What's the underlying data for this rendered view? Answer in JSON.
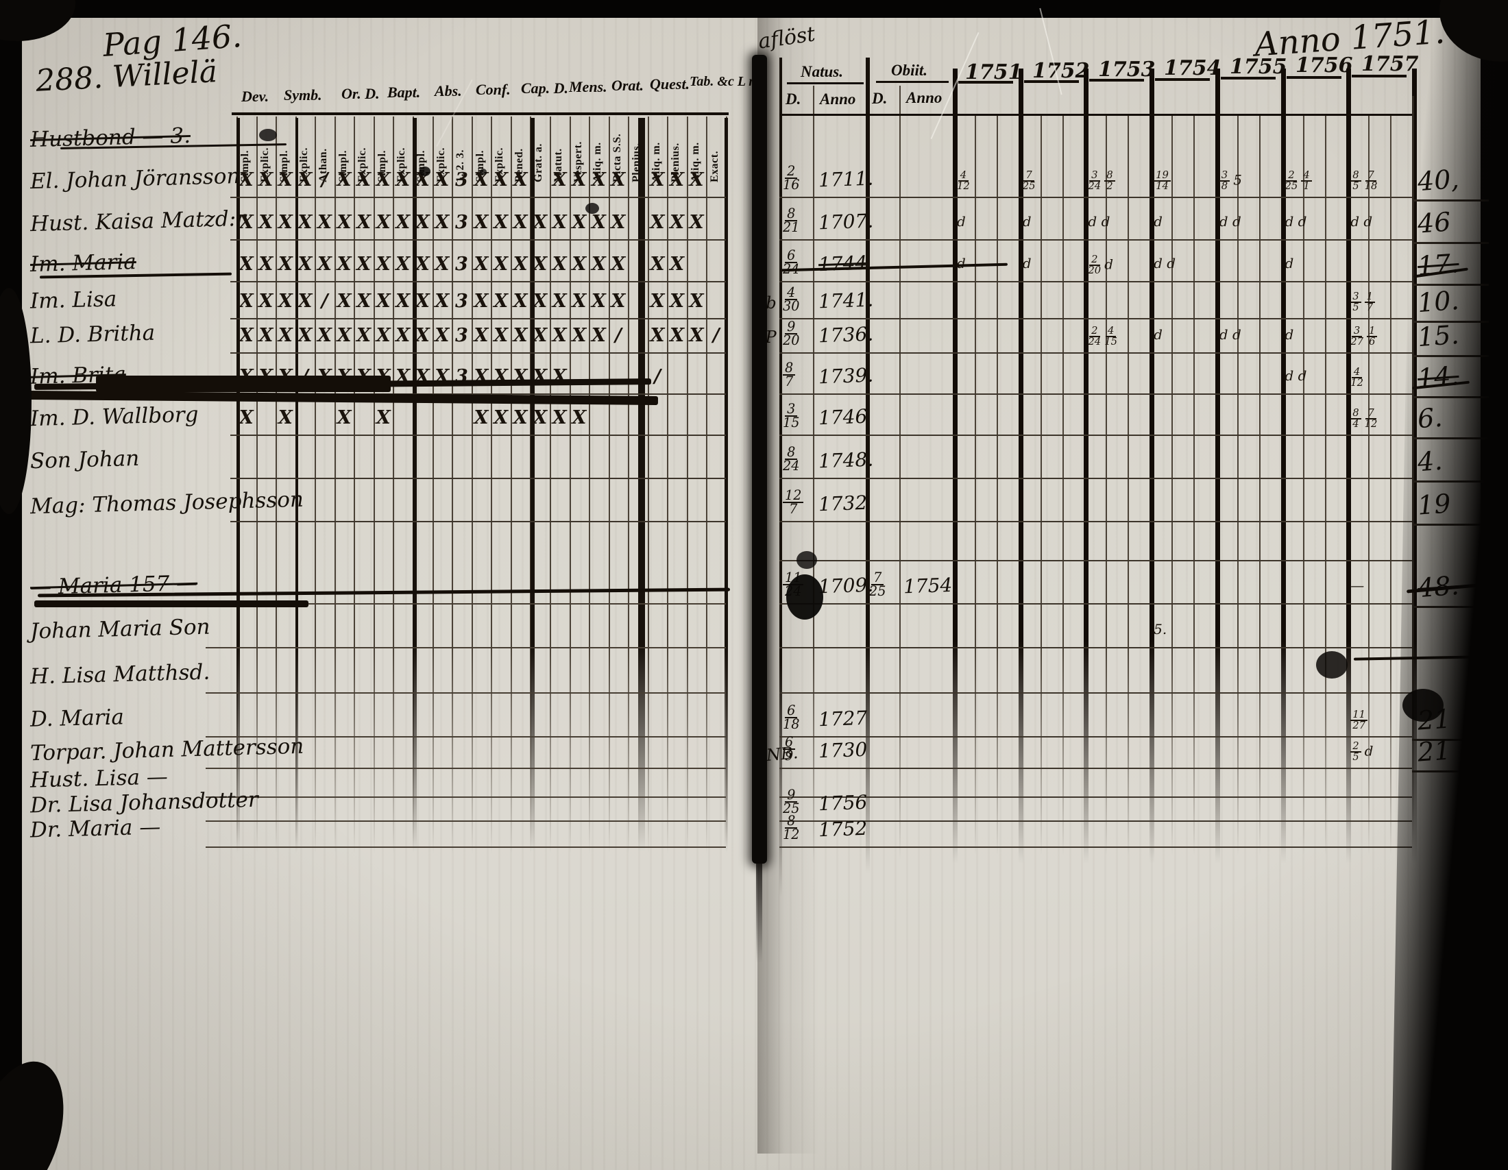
{
  "photo": {
    "ink_color": "#171009",
    "annotations": {
      "page_label": "Pag 146.",
      "village": "288. Willelä",
      "anno": "Anno 1751.",
      "spine_note": "aflöst",
      "nb_note": "NB."
    }
  },
  "left_table": {
    "group_headers": [
      "Dev.",
      "Symb.",
      "Or. D.",
      "Bapt.",
      "Abs.",
      "Conf.",
      "Cap. D.",
      "Mens.",
      "Orat.",
      "Quest.",
      "Tab. &c L n."
    ],
    "sub_headers": [
      "Simpl.",
      "Explic.",
      "Simpl.",
      "Explic.",
      "Athan.",
      "Simpl.",
      "Explic.",
      "Simpl.",
      "Explic.",
      "Simpl.",
      "Explic.",
      "1. 2. 3.",
      "Simpl.",
      "Explic.",
      "Bened.",
      "Grat. a.",
      "Matut.",
      "Vespert.",
      "Aliq. m.",
      "Dicta S.S.",
      "Plenius.",
      "Aliq. m.",
      "Plenius.",
      "Aliq. m.",
      "Exact."
    ]
  },
  "right_table": {
    "natus_label": "Natus.",
    "obiit_label": "Obiit.",
    "day_label": "D.",
    "anno_label": "Anno",
    "years": [
      "1751",
      "1752",
      "1753",
      "1754",
      "1755",
      "1756",
      "1757"
    ]
  },
  "rows": [
    {
      "name": "Hustbond — 3.",
      "name_struck": true,
      "marks": null,
      "natus_d": "",
      "natus_anno": "",
      "natus_struck": false,
      "obiit_d": "",
      "obiit_anno": "",
      "year_marks": [
        "",
        "",
        "",
        "",
        "",
        "",
        ""
      ],
      "num": "",
      "num_struck": false,
      "margin": ""
    },
    {
      "name": "El. Johan Jöransson",
      "name_struck": false,
      "marks": [
        "X",
        "X",
        "X",
        "X",
        "/",
        "X",
        "X",
        "X",
        "X",
        "X",
        "X",
        "3",
        "X",
        "X",
        "X",
        "",
        "X",
        "X",
        "X",
        "X",
        "",
        "X",
        "X",
        "X",
        ""
      ],
      "natus_d": "2/16",
      "natus_anno": "1711.",
      "natus_struck": false,
      "obiit_d": "",
      "obiit_anno": "",
      "year_marks": [
        "4/12",
        "7/25",
        "3/24 8/2",
        "19/14",
        "3/8 5",
        "2/25 4/1",
        "8/5 7/18"
      ],
      "num": "40,",
      "num_struck": false,
      "margin": ""
    },
    {
      "name": "Hust. Kaisa Matzd:r",
      "name_struck": false,
      "marks": [
        "X",
        "X",
        "X",
        "X",
        "X",
        "X",
        "X",
        "X",
        "X",
        "X",
        "X",
        "3",
        "X",
        "X",
        "X",
        "X",
        "X",
        "X",
        "X",
        "X",
        "",
        "X",
        "X",
        "X",
        ""
      ],
      "natus_d": "8/21",
      "natus_anno": "1707.",
      "natus_struck": false,
      "obiit_d": "",
      "obiit_anno": "",
      "year_marks": [
        "d",
        "d",
        "d d",
        "d",
        "d d",
        "d d",
        "d d"
      ],
      "num": "46",
      "num_struck": false,
      "margin": ""
    },
    {
      "name": "Im. Maria",
      "name_struck": true,
      "marks": [
        "X",
        "X",
        "X",
        "X",
        "X",
        "X",
        "X",
        "X",
        "X",
        "X",
        "X",
        "3",
        "X",
        "X",
        "X",
        "X",
        "X",
        "X",
        "X",
        "X",
        "",
        "X",
        "X",
        "",
        ""
      ],
      "natus_d": "6/24",
      "natus_anno": "1744",
      "natus_struck": true,
      "obiit_d": "",
      "obiit_anno": "",
      "year_marks": [
        "d",
        "d",
        "2/20 d",
        "d d",
        "",
        "d",
        ""
      ],
      "num": "17.",
      "num_struck": true,
      "margin": ""
    },
    {
      "name": "Im. Lisa",
      "name_struck": false,
      "marks": [
        "X",
        "X",
        "X",
        "X",
        "/",
        "X",
        "X",
        "X",
        "X",
        "X",
        "X",
        "3",
        "X",
        "X",
        "X",
        "X",
        "X",
        "X",
        "X",
        "X",
        "",
        "X",
        "X",
        "X",
        ""
      ],
      "natus_d": "4/30",
      "natus_anno": "1741.",
      "natus_struck": false,
      "obiit_d": "",
      "obiit_anno": "",
      "year_marks": [
        "",
        "",
        "",
        "",
        "",
        "",
        "3/5 1/7"
      ],
      "num": "10.",
      "num_struck": false,
      "margin": "Ab"
    },
    {
      "name": "L. D. Britha",
      "name_struck": false,
      "marks": [
        "X",
        "X",
        "X",
        "X",
        "X",
        "X",
        "X",
        "X",
        "X",
        "X",
        "X",
        "3",
        "X",
        "X",
        "X",
        "X",
        "X",
        "X",
        "X",
        "/",
        "",
        "X",
        "X",
        "X",
        "/"
      ],
      "natus_d": "9/20",
      "natus_anno": "1736.",
      "natus_struck": false,
      "obiit_d": "",
      "obiit_anno": "",
      "year_marks": [
        "",
        "",
        "2/24 4/15",
        "d",
        "d d",
        "d",
        "3/27 1/6"
      ],
      "num": "15.",
      "num_struck": false,
      "margin": "SP"
    },
    {
      "name": "Im. Brita",
      "name_struck": true,
      "marks": [
        "X",
        "X",
        "X",
        "/",
        "X",
        "X",
        "X",
        "X",
        "X",
        "X",
        "X",
        "3",
        "X",
        "X",
        "X",
        "X",
        "X",
        "",
        "",
        "",
        "",
        "/",
        "",
        "",
        ""
      ],
      "natus_d": "8/7",
      "natus_anno": "1739.",
      "natus_struck": false,
      "obiit_d": "",
      "obiit_anno": "",
      "year_marks": [
        "",
        "",
        "",
        "",
        "",
        "d d",
        "4/12"
      ],
      "num": "14.",
      "num_struck": true,
      "margin": ""
    },
    {
      "name": "Im. D. Wallborg",
      "name_struck": false,
      "marks": [
        "X",
        "",
        "X",
        "",
        "",
        "X",
        "",
        "X",
        "",
        "",
        "",
        "",
        "X",
        "X",
        "X",
        "X",
        "X",
        "X",
        "",
        "",
        "",
        "",
        "",
        "",
        ""
      ],
      "natus_d": "3/15",
      "natus_anno": "1746",
      "natus_struck": false,
      "obiit_d": "",
      "obiit_anno": "",
      "year_marks": [
        "",
        "",
        "",
        "",
        "",
        "",
        "8/4 7/12"
      ],
      "num": "6.",
      "num_struck": false,
      "margin": ""
    },
    {
      "name": "Son Johan",
      "name_struck": false,
      "marks": null,
      "natus_d": "8/24",
      "natus_anno": "1748.",
      "natus_struck": false,
      "obiit_d": "",
      "obiit_anno": "",
      "year_marks": [
        "",
        "",
        "",
        "",
        "",
        "",
        ""
      ],
      "num": "4.",
      "num_struck": false,
      "margin": ""
    },
    {
      "name": "Mag: Thomas Josephsson",
      "name_struck": false,
      "marks": null,
      "natus_d": "12/7",
      "natus_anno": "1732",
      "natus_struck": false,
      "obiit_d": "",
      "obiit_anno": "",
      "year_marks": [
        "",
        "",
        "",
        "",
        "",
        "",
        ""
      ],
      "num": "19",
      "num_struck": false,
      "margin": ""
    },
    {
      "name": "",
      "name_struck": false,
      "marks": null,
      "natus_d": "",
      "natus_anno": "",
      "natus_struck": false,
      "obiit_d": "",
      "obiit_anno": "",
      "year_marks": [
        "",
        "",
        "",
        "",
        "",
        "",
        ""
      ],
      "num": "",
      "num_struck": false,
      "margin": ""
    },
    {
      "name": "— Maria 157 —",
      "name_struck": true,
      "marks": null,
      "natus_d": "11/24",
      "natus_anno": "1709.",
      "natus_struck": false,
      "obiit_d": "7/25",
      "obiit_anno": "1754.",
      "year_marks": [
        "",
        "",
        "",
        "",
        "",
        "",
        "—"
      ],
      "num": "48.",
      "num_struck": true,
      "margin": ""
    },
    {
      "name": "Johan Maria Son",
      "name_struck": false,
      "marks": null,
      "natus_d": "",
      "natus_anno": "",
      "natus_struck": false,
      "obiit_d": "",
      "obiit_anno": "",
      "year_marks": [
        "",
        "",
        "",
        "5.",
        "",
        "",
        ""
      ],
      "num": "",
      "num_struck": false,
      "margin": ""
    },
    {
      "name": "H. Lisa Matthsd.",
      "name_struck": false,
      "marks": null,
      "natus_d": "",
      "natus_anno": "",
      "natus_struck": false,
      "obiit_d": "",
      "obiit_anno": "",
      "year_marks": [
        "",
        "",
        "",
        "",
        "",
        "",
        ""
      ],
      "num": "",
      "num_struck": false,
      "margin": ""
    },
    {
      "name": "D. Maria",
      "name_struck": false,
      "marks": null,
      "natus_d": "6/18",
      "natus_anno": "1727",
      "natus_struck": false,
      "obiit_d": "",
      "obiit_anno": "",
      "year_marks": [
        "",
        "",
        "",
        "",
        "",
        "",
        "11/27"
      ],
      "num": "21",
      "num_struck": false,
      "margin": ""
    },
    {
      "name": "Torpar. Johan Mattersson",
      "name_struck": false,
      "marks": null,
      "natus_d": "6/9",
      "natus_anno": "1730",
      "natus_struck": false,
      "obiit_d": "",
      "obiit_anno": "",
      "year_marks": [
        "",
        "",
        "",
        "",
        "",
        "",
        "2/5 d"
      ],
      "num": "21",
      "num_struck": false,
      "margin": ""
    },
    {
      "name": "Hust. Lisa —",
      "name_struck": false,
      "marks": null,
      "natus_d": "",
      "natus_anno": "",
      "natus_struck": false,
      "obiit_d": "",
      "obiit_anno": "",
      "year_marks": [
        "",
        "",
        "",
        "",
        "",
        "",
        ""
      ],
      "num": "",
      "num_struck": false,
      "margin": ""
    },
    {
      "name": "Dr. Lisa Johansdotter",
      "name_struck": false,
      "marks": null,
      "natus_d": "9/25",
      "natus_anno": "1756",
      "natus_struck": false,
      "obiit_d": "",
      "obiit_anno": "",
      "year_marks": [
        "",
        "",
        "",
        "",
        "",
        "",
        ""
      ],
      "num": "",
      "num_struck": false,
      "margin": ""
    },
    {
      "name": "Dr. Maria —",
      "name_struck": false,
      "marks": null,
      "natus_d": "8/12",
      "natus_anno": "1752",
      "natus_struck": false,
      "obiit_d": "",
      "obiit_anno": "",
      "year_marks": [
        "",
        "",
        "",
        "",
        "",
        "",
        ""
      ],
      "num": "",
      "num_struck": false,
      "margin": ""
    }
  ]
}
